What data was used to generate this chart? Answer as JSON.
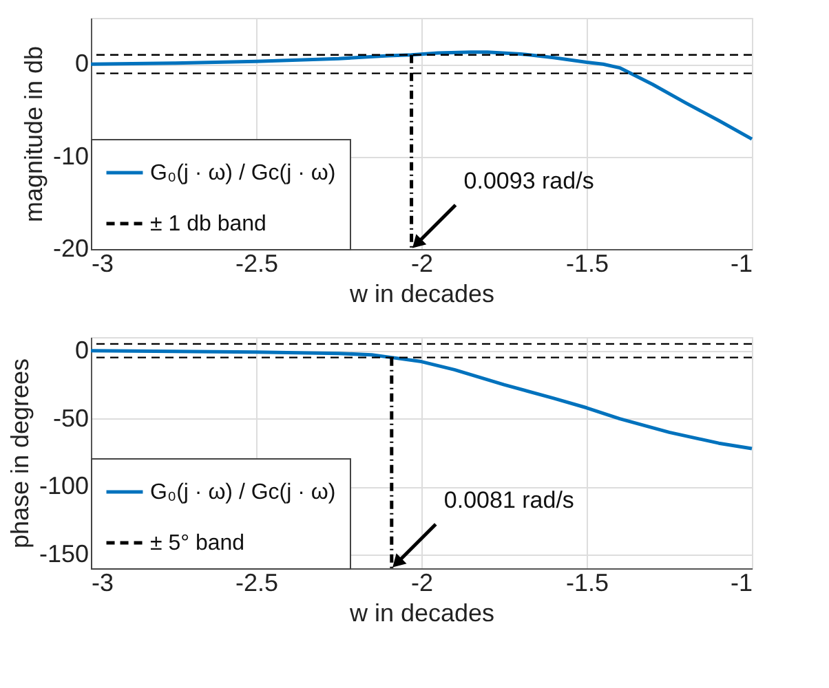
{
  "chart_data": [
    {
      "type": "line",
      "xlabel": "w in decades",
      "ylabel": "magnitude in db",
      "xlim": [
        -3,
        -1
      ],
      "ylim": [
        -20,
        5
      ],
      "xticks": [
        -3,
        -2.5,
        -2,
        -1.5,
        -1
      ],
      "yticks": [
        -20,
        -10,
        0
      ],
      "grid": true,
      "legend": "bottom left",
      "series": [
        {
          "name": "G₀(j · ω) / Gc(j · ω)",
          "color": "#0072bd",
          "x": [
            -3,
            -2.75,
            -2.5,
            -2.25,
            -2.1,
            -2.03,
            -1.95,
            -1.85,
            -1.8,
            -1.7,
            -1.6,
            -1.5,
            -1.45,
            -1.4,
            -1.3,
            -1.2,
            -1.1,
            -1.0
          ],
          "values": [
            0,
            0.1,
            0.3,
            0.6,
            0.9,
            1,
            1.2,
            1.3,
            1.3,
            1.1,
            0.7,
            0.2,
            0,
            -0.4,
            -2.2,
            -4.2,
            -6.1,
            -8.1
          ]
        },
        {
          "type": "line",
          "color": "#000000",
          "line_style": "dashdot",
          "x": [
            -2.03,
            -2.03
          ],
          "values": [
            1,
            -20
          ]
        }
      ],
      "ref_lines": [
        {
          "axis": "y",
          "value": 1,
          "label": "± 1 db band",
          "color": "#000000",
          "line_style": "dashed"
        },
        {
          "axis": "y",
          "value": -1,
          "color": "#000000",
          "line_style": "dashed"
        }
      ],
      "annotations": [
        {
          "text": "0.0093 rad/s",
          "x": -2.03,
          "y": -20
        }
      ]
    },
    {
      "type": "line",
      "xlabel": "w in decades",
      "ylabel": "phase in degrees",
      "xlim": [
        -3,
        -1
      ],
      "ylim": [
        -160,
        10
      ],
      "xticks": [
        -3,
        -2.5,
        -2,
        -1.5,
        -1
      ],
      "yticks": [
        -150,
        -100,
        -50,
        0
      ],
      "grid": true,
      "legend": "bottom left",
      "series": [
        {
          "name": "G₀(j · ω) / Gc(j · ω)",
          "color": "#0072bd",
          "x": [
            -3,
            -2.5,
            -2.25,
            -2.15,
            -2.09,
            -2,
            -1.9,
            -1.75,
            -1.6,
            -1.5,
            -1.4,
            -1.25,
            -1.1,
            -1
          ],
          "values": [
            0,
            -1,
            -2,
            -3,
            -5,
            -8,
            -14,
            -25,
            -35,
            -42,
            -50,
            -60,
            -68,
            -72
          ]
        },
        {
          "type": "line",
          "color": "#000000",
          "line_style": "dashdot",
          "x": [
            -2.09,
            -2.09
          ],
          "values": [
            -5,
            -160
          ]
        }
      ],
      "ref_lines": [
        {
          "axis": "y",
          "value": 5,
          "label": "± 5° band",
          "color": "#000000",
          "line_style": "dashed"
        },
        {
          "axis": "y",
          "value": -5,
          "color": "#000000",
          "line_style": "dashed"
        }
      ],
      "annotations": [
        {
          "text": "0.0081 rad/s",
          "x": -2.09,
          "y": -160
        }
      ]
    }
  ]
}
